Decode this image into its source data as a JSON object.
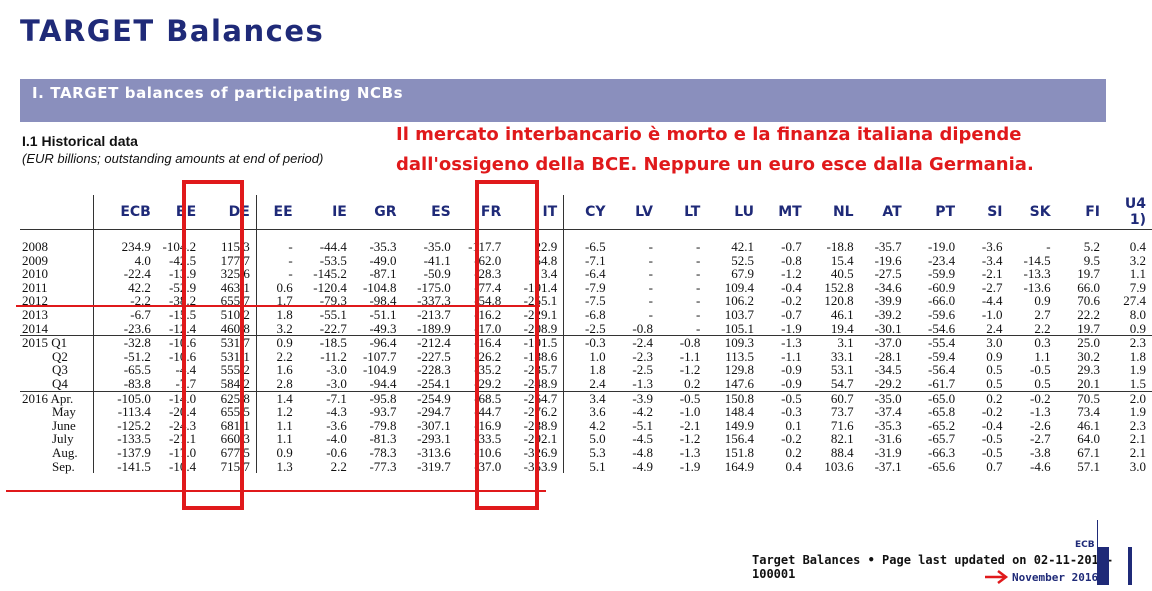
{
  "title": "TARGET Balances",
  "section_bar": "I. TARGET balances of participating NCBs",
  "subhead": "I.1 Historical data",
  "subnote": "(EUR billions; outstanding amounts at end of period)",
  "annotation": {
    "line1": "Il mercato interbancario è morto e la finanza italiana dipende",
    "line2": "dall'ossigeno della BCE. Neppure un euro esce dalla Germania."
  },
  "table": {
    "columns": [
      "ECB",
      "BE",
      "DE",
      "EE",
      "IE",
      "GR",
      "ES",
      "FR",
      "IT",
      "CY",
      "LV",
      "LT",
      "LU",
      "MT",
      "NL",
      "AT",
      "PT",
      "SI",
      "SK",
      "FI",
      "U4 1)"
    ],
    "rows": [
      {
        "period": "2008",
        "values": [
          "234.9",
          "-104.2",
          "115.3",
          "-",
          "-44.4",
          "-35.3",
          "-35.0",
          "-117.7",
          "22.9",
          "-6.5",
          "-",
          "-",
          "42.1",
          "-0.7",
          "-18.8",
          "-35.7",
          "-19.0",
          "-3.6",
          "-",
          "5.2",
          "0.4"
        ]
      },
      {
        "period": "2009",
        "values": [
          "4.0",
          "-42.5",
          "177.7",
          "-",
          "-53.5",
          "-49.0",
          "-41.1",
          "-62.0",
          "54.8",
          "-7.1",
          "-",
          "-",
          "52.5",
          "-0.8",
          "15.4",
          "-19.6",
          "-23.4",
          "-3.4",
          "-14.5",
          "9.5",
          "3.2"
        ]
      },
      {
        "period": "2010",
        "values": [
          "-22.4",
          "-13.9",
          "325.6",
          "-",
          "-145.2",
          "-87.1",
          "-50.9",
          "-28.3",
          "3.4",
          "-6.4",
          "-",
          "-",
          "67.9",
          "-1.2",
          "40.5",
          "-27.5",
          "-59.9",
          "-2.1",
          "-13.3",
          "19.7",
          "1.1"
        ]
      },
      {
        "period": "2011",
        "values": [
          "42.2",
          "-52.9",
          "463.1",
          "0.6",
          "-120.4",
          "-104.8",
          "-175.0",
          "-77.4",
          "-191.4",
          "-7.9",
          "-",
          "-",
          "109.4",
          "-0.4",
          "152.8",
          "-34.6",
          "-60.9",
          "-2.7",
          "-13.6",
          "66.0",
          "7.9"
        ]
      },
      {
        "period": "2012",
        "values": [
          "-2.2",
          "-38.2",
          "655.7",
          "1.7",
          "-79.3",
          "-98.4",
          "-337.3",
          "-54.8",
          "-255.1",
          "-7.5",
          "-",
          "-",
          "106.2",
          "-0.2",
          "120.8",
          "-39.9",
          "-66.0",
          "-4.4",
          "0.9",
          "70.6",
          "27.4"
        ]
      },
      {
        "period": "2013",
        "values": [
          "-6.7",
          "-15.5",
          "510.2",
          "1.8",
          "-55.1",
          "-51.1",
          "-213.7",
          "-16.2",
          "-229.1",
          "-6.8",
          "-",
          "-",
          "103.7",
          "-0.7",
          "46.1",
          "-39.2",
          "-59.6",
          "-1.0",
          "2.7",
          "22.2",
          "8.0"
        ]
      },
      {
        "period": "2014",
        "values": [
          "-23.6",
          "-12.4",
          "460.8",
          "3.2",
          "-22.7",
          "-49.3",
          "-189.9",
          "-17.0",
          "-208.9",
          "-2.5",
          "-0.8",
          "-",
          "105.1",
          "-1.9",
          "19.4",
          "-30.1",
          "-54.6",
          "2.4",
          "2.2",
          "19.7",
          "0.9"
        ]
      },
      {
        "period": "2015 Q1",
        "values": [
          "-32.8",
          "-10.6",
          "531.7",
          "0.9",
          "-18.5",
          "-96.4",
          "-212.4",
          "-16.4",
          "-191.5",
          "-0.3",
          "-2.4",
          "-0.8",
          "109.3",
          "-1.3",
          "3.1",
          "-37.0",
          "-55.4",
          "3.0",
          "0.3",
          "25.0",
          "2.3"
        ]
      },
      {
        "period": "Q2",
        "values": [
          "-51.2",
          "-10.6",
          "531.1",
          "2.2",
          "-11.2",
          "-107.7",
          "-227.5",
          "-26.2",
          "-188.6",
          "1.0",
          "-2.3",
          "-1.1",
          "113.5",
          "-1.1",
          "33.1",
          "-28.1",
          "-59.4",
          "0.9",
          "1.1",
          "30.2",
          "1.8"
        ]
      },
      {
        "period": "Q3",
        "values": [
          "-65.5",
          "-4.4",
          "555.2",
          "1.6",
          "-3.0",
          "-104.9",
          "-228.3",
          "-35.2",
          "-235.7",
          "1.8",
          "-2.5",
          "-1.2",
          "129.8",
          "-0.9",
          "53.1",
          "-34.5",
          "-56.4",
          "0.5",
          "-0.5",
          "29.3",
          "1.9"
        ]
      },
      {
        "period": "Q4",
        "values": [
          "-83.8",
          "-7.7",
          "584.2",
          "2.8",
          "-3.0",
          "-94.4",
          "-254.1",
          "-29.2",
          "-248.9",
          "2.4",
          "-1.3",
          "0.2",
          "147.6",
          "-0.9",
          "54.7",
          "-29.2",
          "-61.7",
          "0.5",
          "0.5",
          "20.1",
          "1.5"
        ]
      },
      {
        "period": "2016 Apr.",
        "values": [
          "-105.0",
          "-14.0",
          "625.8",
          "1.4",
          "-7.1",
          "-95.8",
          "-254.9",
          "-68.5",
          "-264.7",
          "3.4",
          "-3.9",
          "-0.5",
          "150.8",
          "-0.5",
          "60.7",
          "-35.0",
          "-65.0",
          "0.2",
          "-0.2",
          "70.5",
          "2.0"
        ]
      },
      {
        "period": "May",
        "values": [
          "-113.4",
          "-20.4",
          "655.5",
          "1.2",
          "-4.3",
          "-93.7",
          "-294.7",
          "-44.7",
          "-276.2",
          "3.6",
          "-4.2",
          "-1.0",
          "148.4",
          "-0.3",
          "73.7",
          "-37.4",
          "-65.8",
          "-0.2",
          "-1.3",
          "73.4",
          "1.9"
        ]
      },
      {
        "period": "June",
        "values": [
          "-125.2",
          "-24.3",
          "681.1",
          "1.1",
          "-3.6",
          "-79.8",
          "-307.1",
          "-16.9",
          "-288.9",
          "4.2",
          "-5.1",
          "-2.1",
          "149.9",
          "0.1",
          "71.6",
          "-35.3",
          "-65.2",
          "-0.4",
          "-2.6",
          "46.1",
          "2.3"
        ]
      },
      {
        "period": "July",
        "values": [
          "-133.5",
          "-27.1",
          "660.3",
          "1.1",
          "-4.0",
          "-81.3",
          "-293.1",
          "-33.5",
          "-292.1",
          "5.0",
          "-4.5",
          "-1.2",
          "156.4",
          "-0.2",
          "82.1",
          "-31.6",
          "-65.7",
          "-0.5",
          "-2.7",
          "64.0",
          "2.1"
        ]
      },
      {
        "period": "Aug.",
        "values": [
          "-137.9",
          "-17.0",
          "677.5",
          "0.9",
          "-0.6",
          "-78.3",
          "-313.6",
          "-10.6",
          "-326.9",
          "5.3",
          "-4.8",
          "-1.3",
          "151.8",
          "0.2",
          "88.4",
          "-31.9",
          "-66.3",
          "-0.5",
          "-3.8",
          "67.1",
          "2.1"
        ]
      },
      {
        "period": "Sep.",
        "values": [
          "-141.5",
          "-10.4",
          "715.7",
          "1.3",
          "2.2",
          "-77.3",
          "-319.7",
          "-37.0",
          "-353.9",
          "5.1",
          "-4.9",
          "-1.9",
          "164.9",
          "0.4",
          "103.6",
          "-37.1",
          "-65.6",
          "0.7",
          "-4.6",
          "57.1",
          "3.0"
        ]
      }
    ]
  },
  "footer": {
    "ecb": "ECB",
    "text": "Target Balances  •  Page last updated on 02-11-2016-100001",
    "date": "November 2016"
  },
  "colors": {
    "accent": "#1f2a78",
    "bar": "#8a8fbd",
    "annotation": "#e0191b"
  }
}
